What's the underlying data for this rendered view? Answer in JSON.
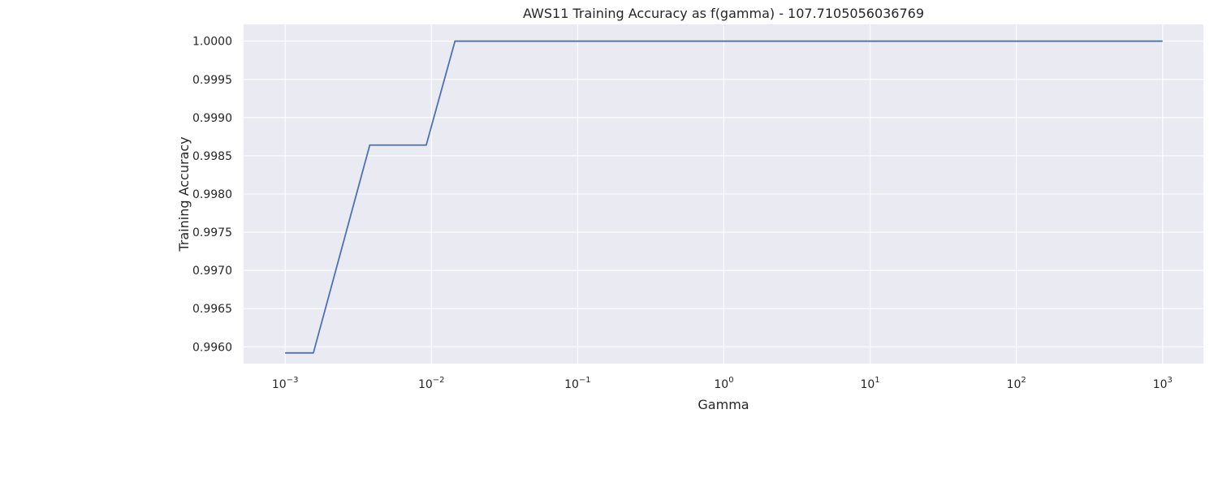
{
  "chart_data": {
    "type": "line",
    "title": "AWS11 Training Accuracy as f(gamma) - 107.7105056036769",
    "xlabel": "Gamma",
    "ylabel": "Training Accuracy",
    "xscale": "log",
    "grid": true,
    "xlim": [
      0.00052,
      1900
    ],
    "ylim": [
      0.99578,
      1.00022
    ],
    "x_ticks": [
      {
        "base": "10",
        "exp": "−3",
        "value": 0.001
      },
      {
        "base": "10",
        "exp": "−2",
        "value": 0.01
      },
      {
        "base": "10",
        "exp": "−1",
        "value": 0.1
      },
      {
        "base": "10",
        "exp": "0",
        "value": 1
      },
      {
        "base": "10",
        "exp": "1",
        "value": 10
      },
      {
        "base": "10",
        "exp": "2",
        "value": 100
      },
      {
        "base": "10",
        "exp": "3",
        "value": 1000
      }
    ],
    "y_ticks": [
      {
        "label": "0.9960",
        "value": 0.996
      },
      {
        "label": "0.9965",
        "value": 0.9965
      },
      {
        "label": "0.9970",
        "value": 0.997
      },
      {
        "label": "0.9975",
        "value": 0.9975
      },
      {
        "label": "0.9980",
        "value": 0.998
      },
      {
        "label": "0.9985",
        "value": 0.9985
      },
      {
        "label": "0.9990",
        "value": 0.999
      },
      {
        "label": "0.9995",
        "value": 0.9995
      },
      {
        "label": "1.0000",
        "value": 1.0
      }
    ],
    "series": [
      {
        "color": "#4c72b0",
        "x": [
          0.001,
          0.00156,
          0.00379,
          0.00922,
          0.0145,
          0.02,
          0.05,
          0.1,
          0.2,
          0.5,
          1,
          2,
          5,
          10,
          20,
          50,
          100,
          200,
          500,
          1000
        ],
        "y": [
          0.99592,
          0.99592,
          0.99864,
          0.99864,
          1.0,
          1.0,
          1.0,
          1.0,
          1.0,
          1.0,
          1.0,
          1.0,
          1.0,
          1.0,
          1.0,
          1.0,
          1.0,
          1.0,
          1.0,
          1.0
        ]
      }
    ]
  }
}
